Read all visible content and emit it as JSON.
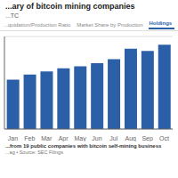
{
  "chart_data": {
    "type": "bar",
    "title": "...ary of bitcoin mining companies",
    "subtitle": "...TC",
    "annotations": [
      "...quidation/Production Ratio",
      "Market Share by Production",
      "Holdings",
      "...from 19 public companies with bitcoin self-mining business",
      "...ag • Source: SEC Filings"
    ],
    "categories": [
      "Jan",
      "Feb",
      "Mar",
      "Apr",
      "May",
      "Jun",
      "Jul",
      "Aug",
      "Sep",
      "Oct"
    ],
    "values": [
      48,
      53,
      56,
      59,
      61,
      64,
      68,
      78,
      76,
      82
    ],
    "color": "#2B5FA8",
    "ylim": [
      0,
      90
    ],
    "yticks": [
      0,
      20,
      40,
      60,
      80
    ],
    "grid": true,
    "tick_labels": "x"
  }
}
